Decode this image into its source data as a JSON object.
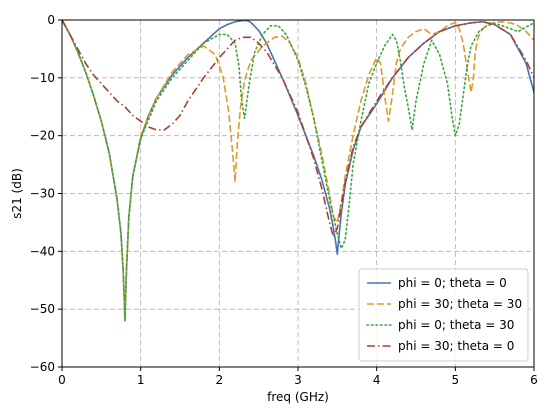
{
  "chart_data": {
    "type": "line",
    "title": "",
    "xlabel": "freq (GHz)",
    "ylabel": "s21 (dB)",
    "xlim": [
      0,
      6
    ],
    "ylim": [
      -60,
      0
    ],
    "xticks": [
      0,
      1,
      2,
      3,
      4,
      5,
      6
    ],
    "yticks": [
      0,
      -10,
      -20,
      -30,
      -40,
      -50,
      -60
    ],
    "grid": true,
    "legend_position": "lower right",
    "series": [
      {
        "name": "phi = 0; theta = 0",
        "color": "#4c72b0",
        "style": "solid",
        "x": [
          0,
          0.1,
          0.2,
          0.3,
          0.4,
          0.5,
          0.6,
          0.7,
          0.75,
          0.78,
          0.8,
          0.82,
          0.85,
          0.9,
          1.0,
          1.1,
          1.2,
          1.4,
          1.6,
          1.8,
          2.0,
          2.1,
          2.2,
          2.3,
          2.35,
          2.4,
          2.5,
          2.6,
          2.8,
          3.0,
          3.2,
          3.3,
          3.4,
          3.45,
          3.48,
          3.5,
          3.52,
          3.55,
          3.6,
          3.7,
          3.8,
          4.0,
          4.2,
          4.4,
          4.6,
          4.8,
          5.0,
          5.2,
          5.35,
          5.5,
          5.7,
          5.9,
          6.0
        ],
        "y": [
          0,
          -2.5,
          -5.5,
          -9,
          -13,
          -17.5,
          -23,
          -31,
          -37,
          -44,
          -52,
          -43,
          -34,
          -27,
          -20.5,
          -16.5,
          -13.5,
          -9.5,
          -6.5,
          -4,
          -1.5,
          -0.8,
          -0.3,
          -0.1,
          -0.1,
          -0.4,
          -1.8,
          -4,
          -10,
          -16.5,
          -23.5,
          -27.5,
          -32.5,
          -36,
          -38.5,
          -40.5,
          -37.5,
          -33.5,
          -28.5,
          -22.5,
          -18.5,
          -14.5,
          -10,
          -6.5,
          -4,
          -2,
          -1,
          -0.5,
          -0.3,
          -0.8,
          -2.5,
          -7.5,
          -12.5
        ]
      },
      {
        "name": "phi = 30; theta = 30",
        "color": "#dd9c29",
        "style": "dashed",
        "x": [
          0,
          0.1,
          0.2,
          0.3,
          0.4,
          0.5,
          0.6,
          0.7,
          0.75,
          0.78,
          0.8,
          0.82,
          0.85,
          0.9,
          1.0,
          1.2,
          1.4,
          1.6,
          1.8,
          1.95,
          2.05,
          2.12,
          2.17,
          2.2,
          2.23,
          2.27,
          2.32,
          2.4,
          2.55,
          2.7,
          2.8,
          2.9,
          3.0,
          3.1,
          3.2,
          3.3,
          3.4,
          3.45,
          3.5,
          3.55,
          3.6,
          3.7,
          3.8,
          3.9,
          4.0,
          4.05,
          4.1,
          4.15,
          4.2,
          4.25,
          4.3,
          4.4,
          4.5,
          4.6,
          4.7,
          4.8,
          4.9,
          5.0,
          5.05,
          5.1,
          5.15,
          5.2,
          5.23,
          5.25,
          5.28,
          5.32,
          5.4,
          5.5,
          5.6,
          5.7,
          5.8,
          5.9,
          6.0
        ],
        "y": [
          0,
          -2.5,
          -5.5,
          -9,
          -13,
          -17.5,
          -23,
          -31,
          -37,
          -44,
          -51.5,
          -43,
          -34,
          -27,
          -20,
          -13.5,
          -9,
          -6,
          -4.5,
          -6,
          -10,
          -16,
          -23,
          -28,
          -21,
          -15,
          -10.5,
          -7,
          -4.5,
          -3,
          -2.8,
          -4,
          -6.5,
          -11,
          -17,
          -23,
          -30,
          -34,
          -35,
          -31.5,
          -27,
          -20,
          -14,
          -9.5,
          -6.5,
          -7.5,
          -13,
          -17.5,
          -13,
          -7.5,
          -5,
          -3,
          -2,
          -1.5,
          -2.5,
          -2,
          -1,
          -0.4,
          -1.5,
          -4,
          -8.5,
          -12.5,
          -10,
          -6,
          -3.5,
          -2,
          -0.8,
          -0.4,
          -0.3,
          -0.5,
          -1,
          -2,
          -3.5
        ]
      },
      {
        "name": "phi = 0; theta = 30",
        "color": "#3aa53a",
        "style": "dotted",
        "x": [
          0,
          0.1,
          0.2,
          0.3,
          0.4,
          0.5,
          0.6,
          0.7,
          0.75,
          0.78,
          0.8,
          0.82,
          0.85,
          0.9,
          1.0,
          1.2,
          1.4,
          1.6,
          1.8,
          2.0,
          2.1,
          2.2,
          2.25,
          2.28,
          2.32,
          2.38,
          2.45,
          2.55,
          2.65,
          2.75,
          2.85,
          3.0,
          3.1,
          3.2,
          3.3,
          3.4,
          3.5,
          3.55,
          3.6,
          3.65,
          3.7,
          3.8,
          3.9,
          4.0,
          4.1,
          4.2,
          4.25,
          4.3,
          4.35,
          4.4,
          4.45,
          4.5,
          4.6,
          4.7,
          4.8,
          4.9,
          4.95,
          5.0,
          5.05,
          5.1,
          5.15,
          5.2,
          5.3,
          5.4,
          5.5,
          5.6,
          5.7,
          5.8,
          5.9,
          6.0
        ],
        "y": [
          0,
          -2.5,
          -5.5,
          -9,
          -13,
          -17.5,
          -23,
          -31,
          -37,
          -44,
          -51.5,
          -43,
          -34,
          -27,
          -20.5,
          -14,
          -10,
          -7,
          -4,
          -2.5,
          -2.5,
          -4,
          -8,
          -13.5,
          -17,
          -11,
          -5.5,
          -2.5,
          -1,
          -1,
          -2.5,
          -7,
          -11.5,
          -17,
          -24,
          -31,
          -37,
          -39.5,
          -38,
          -32,
          -25,
          -17.5,
          -11,
          -7.5,
          -4.5,
          -2.5,
          -3.5,
          -7,
          -11.5,
          -15,
          -19,
          -14,
          -7.5,
          -3.5,
          -6,
          -11,
          -16,
          -20,
          -18,
          -13,
          -8,
          -4.5,
          -2,
          -1,
          -0.6,
          -1,
          -1.5,
          -2,
          -1.2,
          -0.5
        ]
      },
      {
        "name": "phi = 30; theta = 0",
        "color": "#a8412f",
        "style": "dashdot",
        "x": [
          0,
          0.1,
          0.2,
          0.3,
          0.4,
          0.5,
          0.6,
          0.7,
          0.8,
          0.9,
          1.0,
          1.1,
          1.2,
          1.3,
          1.4,
          1.5,
          1.6,
          1.8,
          2.0,
          2.1,
          2.2,
          2.3,
          2.4,
          2.5,
          2.6,
          2.8,
          3.0,
          3.2,
          3.3,
          3.4,
          3.45,
          3.5,
          3.55,
          3.6,
          3.7,
          3.8,
          4.0,
          4.2,
          4.4,
          4.6,
          4.8,
          5.0,
          5.2,
          5.35,
          5.5,
          5.7,
          5.9,
          6.0
        ],
        "y": [
          0,
          -2.5,
          -5,
          -7.5,
          -9.5,
          -11,
          -12.5,
          -14,
          -15,
          -16.5,
          -17.5,
          -18.5,
          -19,
          -19,
          -18,
          -16.5,
          -14,
          -10,
          -6.5,
          -5,
          -3.5,
          -3,
          -3,
          -4,
          -5.5,
          -10,
          -16,
          -24,
          -29,
          -35,
          -37.5,
          -36,
          -32,
          -28,
          -22,
          -18.5,
          -14,
          -10,
          -6.5,
          -4,
          -2,
          -1,
          -0.5,
          -0.3,
          -0.8,
          -2.5,
          -7,
          -10
        ]
      }
    ]
  }
}
